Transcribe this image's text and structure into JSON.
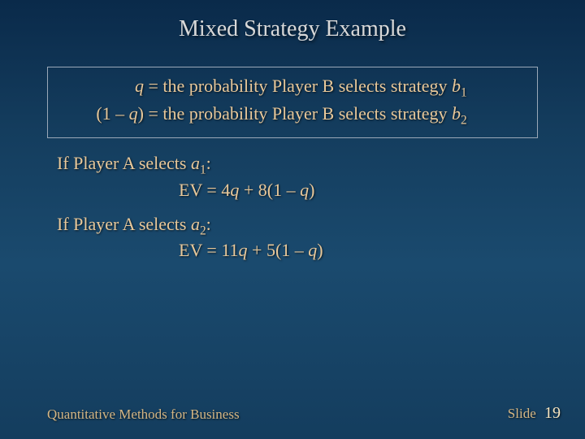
{
  "colors": {
    "background_gradient_top": "#0a2a4a",
    "background_gradient_mid": "#1a4a6e",
    "background_gradient_bottom": "#143d5e",
    "title_color": "#d8d8d8",
    "body_text_color": "#e8c89a",
    "box_border_color": "#9aa8b8",
    "footer_color": "#d4b684",
    "page_number_color": "#f4e4c0"
  },
  "typography": {
    "title_fontsize": 28,
    "body_fontsize": 22,
    "footer_fontsize": 17,
    "font_family": "Georgia / Times"
  },
  "title": "Mixed Strategy Example",
  "definitions": {
    "line1_lhs": "q",
    "line1_rhs": " the probability Player B selects strategy ",
    "line1_strategy": "b",
    "line1_sub": "1",
    "line2_lhs": "(1 – q)",
    "line2_rhs": " the probability Player B selects strategy ",
    "line2_strategy": "b",
    "line2_sub": "2",
    "equals": " = "
  },
  "cases": {
    "a1_prefix": "If Player A selects ",
    "a1_var": "a",
    "a1_sub": "1",
    "a1_colon": ":",
    "a1_ev_label": "EV =  ",
    "a1_ev_expr_num1": "4",
    "a1_ev_q1": "q",
    "a1_ev_plus": " + 8(1 – ",
    "a1_ev_q2": "q",
    "a1_ev_close": ")",
    "a2_prefix": "If Player A selects ",
    "a2_var": "a",
    "a2_sub": "2",
    "a2_colon": ":",
    "a2_ev_label": "EV =  ",
    "a2_ev_expr_num1": "11",
    "a2_ev_q1": "q",
    "a2_ev_plus": " + 5(1 – ",
    "a2_ev_q2": "q",
    "a2_ev_close": ")"
  },
  "footer": {
    "left": "Quantitative Methods for Business",
    "right_label": "Slide",
    "page_number": "19"
  }
}
